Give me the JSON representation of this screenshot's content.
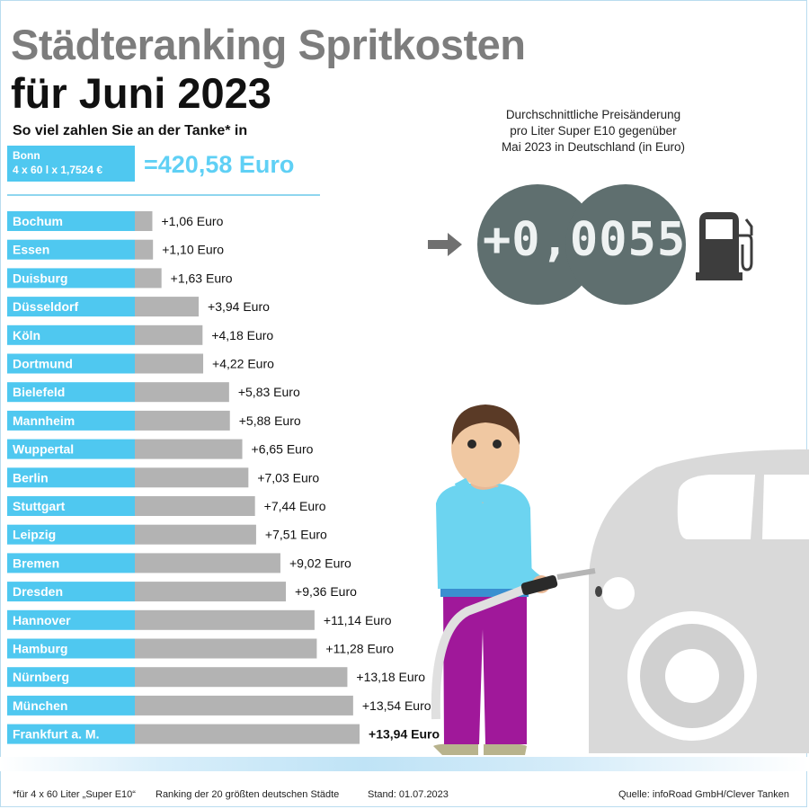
{
  "header": {
    "title_line1": "Städteranking Spritkosten",
    "title_line2": "für Juni 2023",
    "subtitle": "So viel zahlen Sie an der Tanke* in"
  },
  "reference": {
    "city": "Bonn",
    "formula": "4 x 60 l x 1,7524 €",
    "total": "=420,58 Euro"
  },
  "chart_data": {
    "type": "bar",
    "orientation": "horizontal",
    "categories": [
      "Bochum",
      "Essen",
      "Duisburg",
      "Düsseldorf",
      "Köln",
      "Dortmund",
      "Bielefeld",
      "Mannheim",
      "Wuppertal",
      "Berlin",
      "Stuttgart",
      "Leipzig",
      "Bremen",
      "Dresden",
      "Hannover",
      "Hamburg",
      "Nürnberg",
      "München",
      "Frankfurt a. M."
    ],
    "values": [
      1.06,
      1.1,
      1.63,
      3.94,
      4.18,
      4.22,
      5.83,
      5.88,
      6.65,
      7.03,
      7.44,
      7.51,
      9.02,
      9.36,
      11.14,
      11.28,
      13.18,
      13.54,
      13.94
    ],
    "value_labels": [
      "+1,06 Euro",
      "+1,10 Euro",
      "+1,63 Euro",
      "+3,94 Euro",
      "+4,18 Euro",
      "+4,22 Euro",
      "+5,83 Euro",
      "+5,88 Euro",
      "+6,65 Euro",
      "+7,03 Euro",
      "+7,44 Euro",
      "+7,51 Euro",
      "+9,02 Euro",
      "+9,36 Euro",
      "+11,14 Euro",
      "+11,28 Euro",
      "+13,18 Euro",
      "+13,54 Euro",
      "+13,94 Euro"
    ],
    "title": "",
    "xlabel": "",
    "ylabel": "",
    "grid": false
  },
  "price_change": {
    "caption_line1": "Durchschnittliche Preisänderung",
    "caption_line2": "pro Liter Super E10 gegenüber",
    "caption_line3": "Mai 2023 in Deutschland (in Euro)",
    "value": "+0,0055"
  },
  "colors": {
    "label_bg": "#4fc8f0",
    "bar": "#b3b3b3",
    "title_gray": "#7d7d7d",
    "accent_cyan": "#5fd0f5",
    "circle": "#5f6f6f"
  },
  "icons": [
    "arrow-right-icon",
    "fuel-pump-icon"
  ],
  "footer": {
    "note": "*für 4 x 60 Liter „Super E10“",
    "ranking": "Ranking der 20 größten deutschen Städte",
    "date": "Stand: 01.07.2023",
    "source": "Quelle: infoRoad GmbH/Clever Tanken"
  }
}
